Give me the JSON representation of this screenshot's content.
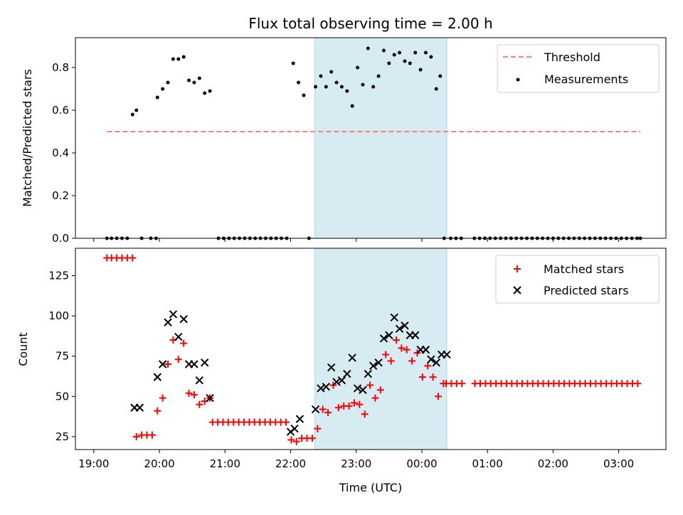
{
  "chart_data": {
    "type": "scatter",
    "title": "Flux total observing time = 2.00 h",
    "colors": {
      "threshold": "#ff7f7f",
      "measurements": "#000000",
      "matched": "#ff0000",
      "predicted": "#000000",
      "band": "#add8e6"
    },
    "highlight_band": {
      "start": 22.37,
      "end": 24.38
    },
    "x_axis": {
      "label": "Time (UTC)",
      "range": [
        18.72,
        27.72
      ],
      "ticks": [
        {
          "v": 19,
          "label": "19:00"
        },
        {
          "v": 20,
          "label": "20:00"
        },
        {
          "v": 21,
          "label": "21:00"
        },
        {
          "v": 22,
          "label": "22:00"
        },
        {
          "v": 23,
          "label": "23:00"
        },
        {
          "v": 24,
          "label": "00:00"
        },
        {
          "v": 25,
          "label": "01:00"
        },
        {
          "v": 26,
          "label": "02:00"
        },
        {
          "v": 27,
          "label": "03:00"
        }
      ]
    },
    "top_panel": {
      "ylabel": "Matched/Predicted stars",
      "ylim": [
        0,
        0.94
      ],
      "ticks": [
        {
          "v": 0,
          "label": "0.0"
        },
        {
          "v": 0.2,
          "label": "0.2"
        },
        {
          "v": 0.4,
          "label": "0.4"
        },
        {
          "v": 0.6,
          "label": "0.6"
        },
        {
          "v": 0.8,
          "label": "0.8"
        }
      ],
      "legend": [
        {
          "key": "threshold",
          "label": "Threshold"
        },
        {
          "key": "measurements",
          "label": "Measurements"
        }
      ],
      "threshold": {
        "name": "Threshold",
        "value": 0.5,
        "x_start": 19.2,
        "x_end": 27.33
      },
      "measurements": {
        "name": "Measurements",
        "x": [
          19.2,
          19.27,
          19.35,
          19.43,
          19.51,
          19.59,
          19.65,
          19.73,
          19.87,
          19.95,
          19.97,
          20.05,
          20.13,
          20.21,
          20.29,
          20.37,
          20.45,
          20.53,
          20.61,
          20.69,
          20.77,
          20.9,
          20.98,
          21.06,
          21.14,
          21.22,
          21.3,
          21.38,
          21.46,
          21.54,
          21.62,
          21.7,
          21.78,
          21.86,
          21.94,
          22.04,
          22.12,
          22.2,
          22.28,
          22.38,
          22.46,
          22.54,
          22.62,
          22.7,
          22.78,
          22.86,
          22.94,
          23.02,
          23.1,
          23.18,
          23.26,
          23.34,
          23.42,
          23.5,
          23.58,
          23.66,
          23.74,
          23.82,
          23.9,
          23.98,
          24.06,
          24.14,
          24.22,
          24.28,
          24.34,
          24.44,
          24.52,
          24.6,
          24.8,
          24.88,
          24.96,
          25.04,
          25.12,
          25.2,
          25.28,
          25.36,
          25.44,
          25.52,
          25.6,
          25.68,
          25.76,
          25.84,
          25.92,
          26.0,
          26.08,
          26.16,
          26.24,
          26.32,
          26.4,
          26.48,
          26.56,
          26.64,
          26.72,
          26.8,
          26.88,
          26.96,
          27.04,
          27.12,
          27.2,
          27.28,
          27.33
        ],
        "y": [
          0,
          0,
          0,
          0,
          0,
          0.58,
          0.6,
          0,
          0,
          0,
          0.66,
          0.7,
          0.73,
          0.84,
          0.84,
          0.85,
          0.74,
          0.73,
          0.75,
          0.68,
          0.69,
          0,
          0,
          0,
          0,
          0,
          0,
          0,
          0,
          0,
          0,
          0,
          0,
          0,
          0,
          0.82,
          0.73,
          0.67,
          0,
          0.71,
          0.76,
          0.71,
          0.78,
          0.73,
          0.71,
          0.69,
          0.62,
          0.8,
          0.72,
          0.89,
          0.71,
          0.76,
          0.88,
          0.82,
          0.86,
          0.87,
          0.83,
          0.82,
          0.87,
          0.79,
          0.87,
          0.85,
          0.7,
          0.76,
          0,
          0,
          0,
          0,
          0,
          0,
          0,
          0,
          0,
          0,
          0,
          0,
          0,
          0,
          0,
          0,
          0,
          0,
          0,
          0,
          0,
          0,
          0,
          0,
          0,
          0,
          0,
          0,
          0,
          0,
          0,
          0,
          0,
          0,
          0,
          0,
          0
        ]
      }
    },
    "bottom_panel": {
      "ylabel": "Count",
      "ylim": [
        17,
        142
      ],
      "ticks": [
        {
          "v": 25,
          "label": "25"
        },
        {
          "v": 50,
          "label": "50"
        },
        {
          "v": 75,
          "label": "75"
        },
        {
          "v": 100,
          "label": "100"
        },
        {
          "v": 125,
          "label": "125"
        }
      ],
      "legend": [
        {
          "key": "matched",
          "label": "Matched stars"
        },
        {
          "key": "predicted",
          "label": "Predicted stars"
        }
      ],
      "matched": {
        "name": "Matched stars",
        "x": [
          19.2,
          19.27,
          19.35,
          19.43,
          19.51,
          19.59,
          19.65,
          19.73,
          19.81,
          19.89,
          19.97,
          20.05,
          20.13,
          20.21,
          20.29,
          20.37,
          20.45,
          20.53,
          20.61,
          20.69,
          20.77,
          20.81,
          20.89,
          20.97,
          21.05,
          21.13,
          21.21,
          21.29,
          21.37,
          21.45,
          21.53,
          21.61,
          21.69,
          21.77,
          21.85,
          21.93,
          22.01,
          22.09,
          22.17,
          22.25,
          22.33,
          22.41,
          22.49,
          22.57,
          22.65,
          22.73,
          22.81,
          22.89,
          22.97,
          23.05,
          23.13,
          23.21,
          23.29,
          23.37,
          23.45,
          23.53,
          23.61,
          23.69,
          23.77,
          23.85,
          23.93,
          24.01,
          24.09,
          24.17,
          24.25,
          24.33,
          24.37,
          24.45,
          24.53,
          24.61,
          24.81,
          24.89,
          24.97,
          25.05,
          25.13,
          25.21,
          25.29,
          25.37,
          25.45,
          25.53,
          25.61,
          25.69,
          25.77,
          25.85,
          25.93,
          26.01,
          26.09,
          26.17,
          26.25,
          26.33,
          26.41,
          26.49,
          26.57,
          26.65,
          26.73,
          26.81,
          26.89,
          26.97,
          27.05,
          27.13,
          27.21,
          27.29
        ],
        "y": [
          136,
          136,
          136,
          136,
          136,
          136,
          25,
          26,
          26,
          26,
          41,
          49,
          70,
          85,
          73,
          83,
          52,
          51,
          45,
          47,
          49,
          34,
          34,
          34,
          34,
          34,
          34,
          34,
          34,
          34,
          34,
          34,
          34,
          34,
          34,
          34,
          23,
          22,
          24,
          24,
          24,
          30,
          42,
          40,
          57,
          43,
          44,
          44,
          46,
          45,
          39,
          57,
          49,
          54,
          76,
          72,
          85,
          80,
          79,
          72,
          77,
          62,
          69,
          62,
          50,
          58,
          58,
          58,
          58,
          58,
          58,
          58,
          58,
          58,
          58,
          58,
          58,
          58,
          58,
          58,
          58,
          58,
          58,
          58,
          58,
          58,
          58,
          58,
          58,
          58,
          58,
          58,
          58,
          58,
          58,
          58,
          58,
          58,
          58,
          58,
          58,
          58
        ]
      },
      "predicted": {
        "name": "Predicted stars",
        "x": [
          19.62,
          19.7,
          19.97,
          20.05,
          20.13,
          20.21,
          20.29,
          20.37,
          20.45,
          20.53,
          20.61,
          20.69,
          20.77,
          22.0,
          22.06,
          22.14,
          22.38,
          22.46,
          22.54,
          22.62,
          22.7,
          22.78,
          22.86,
          22.94,
          23.02,
          23.1,
          23.18,
          23.26,
          23.34,
          23.42,
          23.5,
          23.58,
          23.66,
          23.74,
          23.82,
          23.9,
          23.98,
          24.06,
          24.14,
          24.22,
          24.3,
          24.38
        ],
        "y": [
          43,
          43,
          62,
          70,
          96,
          101,
          87,
          98,
          70,
          70,
          60,
          71,
          49,
          28,
          30,
          36,
          42,
          55,
          56,
          68,
          59,
          60,
          64,
          74,
          55,
          54,
          64,
          69,
          71,
          86,
          88,
          99,
          92,
          94,
          88,
          88,
          79,
          79,
          73,
          71,
          76,
          76
        ]
      }
    }
  }
}
